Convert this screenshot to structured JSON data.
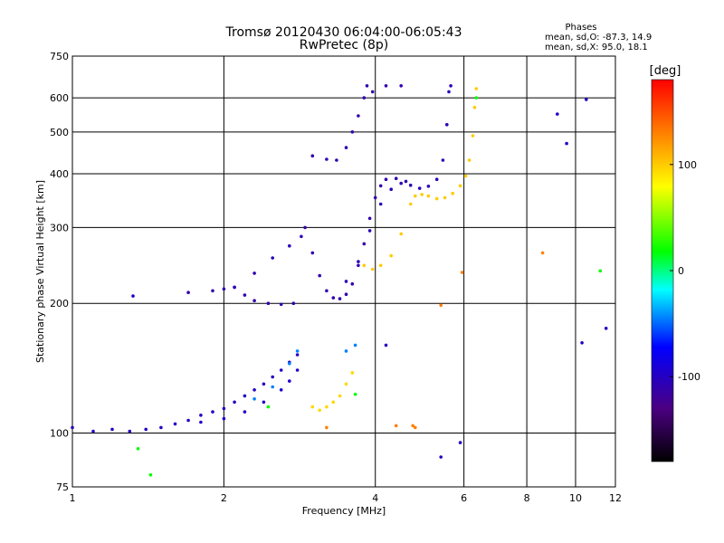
{
  "chart_data": {
    "type": "scatter",
    "title": "Tromsø 20120430 06:04:00-06:05:43",
    "subtitle": "RwPretec (8p)",
    "xlabel": "Frequency [MHz]",
    "ylabel": "Stationary phase Virtual Height [km]",
    "x_scale": "log",
    "y_scale": "log",
    "xlim": [
      1,
      12
    ],
    "ylim": [
      75,
      750
    ],
    "grid": true,
    "x_ticks": [
      {
        "value": 1,
        "label": "1"
      },
      {
        "value": 2,
        "label": "2"
      },
      {
        "value": 4,
        "label": "4"
      },
      {
        "value": 6,
        "label": "6"
      },
      {
        "value": 8,
        "label": "8"
      },
      {
        "value": 10,
        "label": "10"
      },
      {
        "value": 12,
        "label": "12"
      }
    ],
    "y_ticks": [
      {
        "value": 75,
        "label": "75"
      },
      {
        "value": 100,
        "label": "100"
      },
      {
        "value": 200,
        "label": "200"
      },
      {
        "value": 300,
        "label": "300"
      },
      {
        "value": 400,
        "label": "400"
      },
      {
        "value": 500,
        "label": "500"
      },
      {
        "value": 600,
        "label": "600"
      },
      {
        "value": 750,
        "label": "750"
      }
    ],
    "stats": {
      "heading": "Phases",
      "line1": "mean, sd,O: -87.3, 14.9",
      "line2": "mean, sd,X:  95.0, 18.1"
    },
    "colorbar": {
      "label": "[deg]",
      "range": [
        -180,
        180
      ],
      "ticks": [
        {
          "value": 100,
          "label": "100"
        },
        {
          "value": 0,
          "label": "0"
        },
        {
          "value": -100,
          "label": "-100"
        }
      ]
    },
    "traces": [
      {
        "phase": -100,
        "points": [
          [
            1.0,
            103
          ],
          [
            1.1,
            101
          ],
          [
            1.2,
            102
          ],
          [
            1.3,
            101
          ],
          [
            1.4,
            102
          ],
          [
            1.5,
            103
          ],
          [
            1.6,
            105
          ],
          [
            1.7,
            107
          ],
          [
            1.8,
            110
          ],
          [
            1.9,
            112
          ],
          [
            2.0,
            114
          ],
          [
            2.1,
            118
          ],
          [
            2.2,
            122
          ],
          [
            2.3,
            126
          ],
          [
            2.4,
            130
          ],
          [
            2.5,
            135
          ],
          [
            2.6,
            140
          ],
          [
            2.7,
            146
          ],
          [
            2.8,
            152
          ]
        ]
      },
      {
        "phase": -95,
        "points": [
          [
            1.8,
            106
          ],
          [
            2.0,
            108
          ],
          [
            2.2,
            112
          ],
          [
            2.4,
            118
          ],
          [
            2.6,
            126
          ],
          [
            2.7,
            132
          ],
          [
            2.8,
            140
          ]
        ]
      },
      {
        "phase": -110,
        "points": [
          [
            1.7,
            212
          ],
          [
            1.9,
            214
          ],
          [
            2.0,
            216
          ],
          [
            2.1,
            218
          ],
          [
            2.2,
            209
          ],
          [
            2.3,
            203
          ],
          [
            2.45,
            200
          ],
          [
            2.6,
            199
          ],
          [
            2.75,
            200
          ]
        ]
      },
      {
        "phase": -105,
        "points": [
          [
            2.1,
            218
          ],
          [
            2.3,
            235
          ],
          [
            2.5,
            255
          ],
          [
            2.7,
            272
          ],
          [
            2.85,
            286
          ]
        ]
      },
      {
        "phase": -110,
        "points": [
          [
            2.9,
            300
          ],
          [
            3.0,
            262
          ],
          [
            3.1,
            232
          ],
          [
            3.2,
            214
          ],
          [
            3.3,
            206
          ],
          [
            3.4,
            205
          ],
          [
            3.5,
            210
          ],
          [
            3.6,
            222
          ],
          [
            3.7,
            245
          ],
          [
            3.8,
            275
          ],
          [
            3.9,
            315
          ],
          [
            4.0,
            352
          ],
          [
            4.1,
            375
          ],
          [
            4.2,
            388
          ],
          [
            4.4,
            390
          ],
          [
            4.6,
            384
          ]
        ]
      },
      {
        "phase": -108,
        "points": [
          [
            3.0,
            440
          ],
          [
            3.2,
            432
          ],
          [
            3.35,
            430
          ],
          [
            3.5,
            460
          ],
          [
            3.6,
            500
          ],
          [
            3.7,
            545
          ],
          [
            3.8,
            600
          ],
          [
            3.85,
            640
          ],
          [
            3.95,
            620
          ],
          [
            4.2,
            640
          ],
          [
            4.5,
            640
          ]
        ]
      },
      {
        "phase": -105,
        "points": [
          [
            3.5,
            225
          ],
          [
            3.7,
            250
          ],
          [
            3.9,
            295
          ],
          [
            4.1,
            340
          ],
          [
            4.3,
            368
          ],
          [
            4.5,
            380
          ],
          [
            4.7,
            376
          ],
          [
            4.9,
            370
          ],
          [
            5.1,
            374
          ],
          [
            5.3,
            388
          ],
          [
            5.45,
            430
          ],
          [
            5.55,
            520
          ],
          [
            5.6,
            620
          ],
          [
            5.65,
            640
          ]
        ]
      },
      {
        "phase": 100,
        "points": [
          [
            3.8,
            245
          ],
          [
            3.95,
            240
          ],
          [
            4.1,
            245
          ],
          [
            4.3,
            258
          ],
          [
            4.5,
            290
          ],
          [
            4.7,
            340
          ],
          [
            4.8,
            355
          ],
          [
            4.95,
            358
          ],
          [
            5.1,
            355
          ],
          [
            5.3,
            350
          ],
          [
            5.5,
            352
          ],
          [
            5.7,
            360
          ],
          [
            5.9,
            375
          ],
          [
            6.05,
            395
          ],
          [
            6.15,
            430
          ],
          [
            6.25,
            490
          ],
          [
            6.3,
            570
          ],
          [
            6.35,
            630
          ]
        ]
      },
      {
        "phase": 95,
        "points": [
          [
            3.0,
            115
          ],
          [
            3.1,
            113
          ],
          [
            3.2,
            115
          ],
          [
            3.3,
            118
          ],
          [
            3.4,
            122
          ],
          [
            3.5,
            130
          ],
          [
            3.6,
            138
          ]
        ]
      },
      {
        "phase": -45,
        "points": [
          [
            2.3,
            120
          ],
          [
            2.5,
            128
          ],
          [
            2.7,
            145
          ],
          [
            2.8,
            155
          ],
          [
            3.5,
            155
          ],
          [
            3.65,
            160
          ]
        ]
      },
      {
        "phase": 130,
        "points": [
          [
            4.75,
            104
          ],
          [
            4.8,
            103
          ],
          [
            3.2,
            103
          ],
          [
            4.4,
            104
          ],
          [
            5.4,
            198
          ],
          [
            5.95,
            236
          ],
          [
            8.6,
            262
          ]
        ]
      },
      {
        "phase": -100,
        "points": [
          [
            1.32,
            208
          ],
          [
            4.2,
            160
          ],
          [
            5.9,
            95
          ],
          [
            5.4,
            88
          ],
          [
            10.3,
            162
          ],
          [
            11.5,
            175
          ],
          [
            10.5,
            595
          ],
          [
            9.2,
            550
          ],
          [
            9.6,
            470
          ]
        ]
      },
      {
        "phase": 20,
        "points": [
          [
            6.35,
            600
          ],
          [
            2.45,
            115
          ],
          [
            3.65,
            123
          ],
          [
            1.35,
            92
          ],
          [
            1.43,
            80
          ],
          [
            11.2,
            238
          ]
        ]
      }
    ]
  }
}
